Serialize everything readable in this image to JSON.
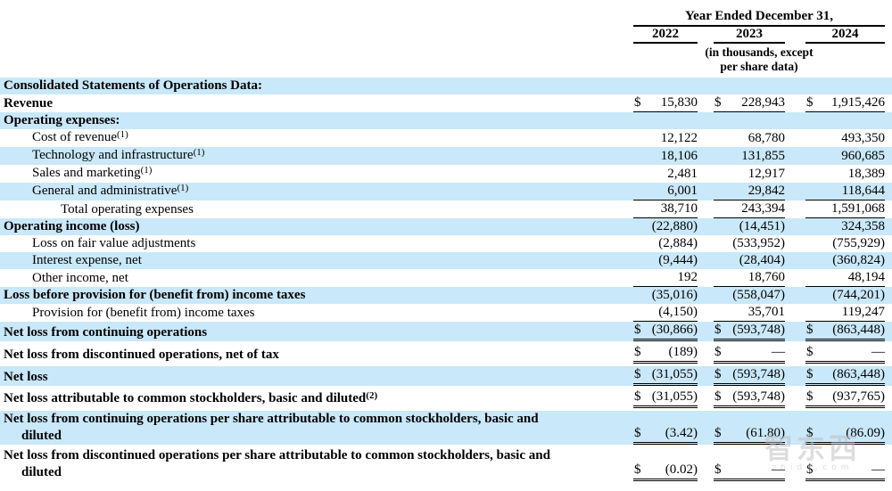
{
  "table": {
    "header": {
      "group_title": "Year Ended December 31,",
      "years": [
        "2022",
        "2023",
        "2024"
      ],
      "units_note": "(in thousands, except\nper share data)"
    },
    "rows": [
      {
        "label": "Consolidated Statements of Operations Data:",
        "bold": true,
        "indent": 0,
        "underline": "none",
        "values": null
      },
      {
        "label": "Revenue",
        "bold": true,
        "indent": 0,
        "underline": "single",
        "values": [
          [
            "$",
            "15,830"
          ],
          [
            "$",
            "228,943"
          ],
          [
            "$",
            "1,915,426"
          ]
        ]
      },
      {
        "label": "Operating expenses:",
        "bold": true,
        "indent": 0,
        "underline": "none",
        "values": null
      },
      {
        "label": "Cost of revenue",
        "sup": "(1)",
        "bold": false,
        "indent": 1,
        "underline": "none",
        "values": [
          [
            "",
            "12,122"
          ],
          [
            "",
            "68,780"
          ],
          [
            "",
            "493,350"
          ]
        ]
      },
      {
        "label": "Technology and infrastructure",
        "sup": "(1)",
        "bold": false,
        "indent": 1,
        "underline": "none",
        "values": [
          [
            "",
            "18,106"
          ],
          [
            "",
            "131,855"
          ],
          [
            "",
            "960,685"
          ]
        ]
      },
      {
        "label": "Sales and marketing",
        "sup": "(1)",
        "bold": false,
        "indent": 1,
        "underline": "none",
        "values": [
          [
            "",
            "2,481"
          ],
          [
            "",
            "12,917"
          ],
          [
            "",
            "18,389"
          ]
        ]
      },
      {
        "label": "General and administrative",
        "sup": "(1)",
        "bold": false,
        "indent": 1,
        "underline": "single",
        "values": [
          [
            "",
            "6,001"
          ],
          [
            "",
            "29,842"
          ],
          [
            "",
            "118,644"
          ]
        ]
      },
      {
        "label": "Total operating expenses",
        "bold": false,
        "indent": 2,
        "underline": "single",
        "values": [
          [
            "",
            "38,710"
          ],
          [
            "",
            "243,394"
          ],
          [
            "",
            "1,591,068"
          ]
        ]
      },
      {
        "label": "Operating income (loss)",
        "bold": true,
        "indent": 0,
        "underline": "none",
        "values": [
          [
            "",
            "(22,880)"
          ],
          [
            "",
            "(14,451)"
          ],
          [
            "",
            "324,358"
          ]
        ]
      },
      {
        "label": "Loss on fair value adjustments",
        "bold": false,
        "indent": 1,
        "underline": "none",
        "values": [
          [
            "",
            "(2,884)"
          ],
          [
            "",
            "(533,952)"
          ],
          [
            "",
            "(755,929)"
          ]
        ]
      },
      {
        "label": "Interest expense, net",
        "bold": false,
        "indent": 1,
        "underline": "none",
        "values": [
          [
            "",
            "(9,444)"
          ],
          [
            "",
            "(28,404)"
          ],
          [
            "",
            "(360,824)"
          ]
        ]
      },
      {
        "label": "Other income, net",
        "bold": false,
        "indent": 1,
        "underline": "single",
        "values": [
          [
            "",
            "192"
          ],
          [
            "",
            "18,760"
          ],
          [
            "",
            "48,194"
          ]
        ]
      },
      {
        "label": "Loss before provision for (benefit from) income taxes",
        "bold": true,
        "indent": 0,
        "underline": "none",
        "values": [
          [
            "",
            "(35,016)"
          ],
          [
            "",
            "(558,047)"
          ],
          [
            "",
            "(744,201)"
          ]
        ]
      },
      {
        "label": "Provision for (benefit from) income taxes",
        "bold": false,
        "indent": 1,
        "underline": "single",
        "values": [
          [
            "",
            "(4,150)"
          ],
          [
            "",
            "35,701"
          ],
          [
            "",
            "119,247"
          ]
        ]
      },
      {
        "label": "Net loss from continuing operations",
        "bold": true,
        "indent": 0,
        "underline": "double",
        "values": [
          [
            "$",
            "(30,866)"
          ],
          [
            "$",
            "(593,748)"
          ],
          [
            "$",
            "(863,448)"
          ]
        ]
      },
      {
        "label": "Net loss from discontinued operations, net of tax",
        "bold": true,
        "indent": 0,
        "underline": "double",
        "values": [
          [
            "$",
            "(189)"
          ],
          [
            "$",
            "—"
          ],
          [
            "$",
            "—"
          ]
        ]
      },
      {
        "label": "Net loss",
        "bold": true,
        "indent": 0,
        "underline": "double",
        "values": [
          [
            "$",
            "(31,055)"
          ],
          [
            "$",
            "(593,748)"
          ],
          [
            "$",
            "(863,448)"
          ]
        ]
      },
      {
        "label": "Net loss attributable to common stockholders, basic and diluted",
        "sup": "(2)",
        "bold": true,
        "indent": 0,
        "underline": "double",
        "values": [
          [
            "$",
            "(31,055)"
          ],
          [
            "$",
            "(593,748)"
          ],
          [
            "$",
            "(937,765)"
          ]
        ]
      },
      {
        "label": "Net loss from continuing operations per share attributable to common stockholders, basic and\ndiluted",
        "bold": true,
        "indent": 0,
        "underline": "double",
        "twoline": true,
        "values": [
          [
            "$",
            "(3.42)"
          ],
          [
            "$",
            "(61.80)"
          ],
          [
            "$",
            "(86.09)"
          ]
        ]
      },
      {
        "label": "Net loss from discontinued operations per share attributable to common stockholders, basic and\ndiluted",
        "bold": true,
        "indent": 0,
        "underline": "double",
        "twoline": true,
        "values": [
          [
            "$",
            "(0.02)"
          ],
          [
            "$",
            "—"
          ],
          [
            "$",
            "—"
          ]
        ]
      }
    ]
  },
  "watermark": {
    "text": "智东西",
    "subtext": "zhidx.com"
  },
  "colors": {
    "row_shade": "#c9e8f9",
    "text": "#000000"
  }
}
